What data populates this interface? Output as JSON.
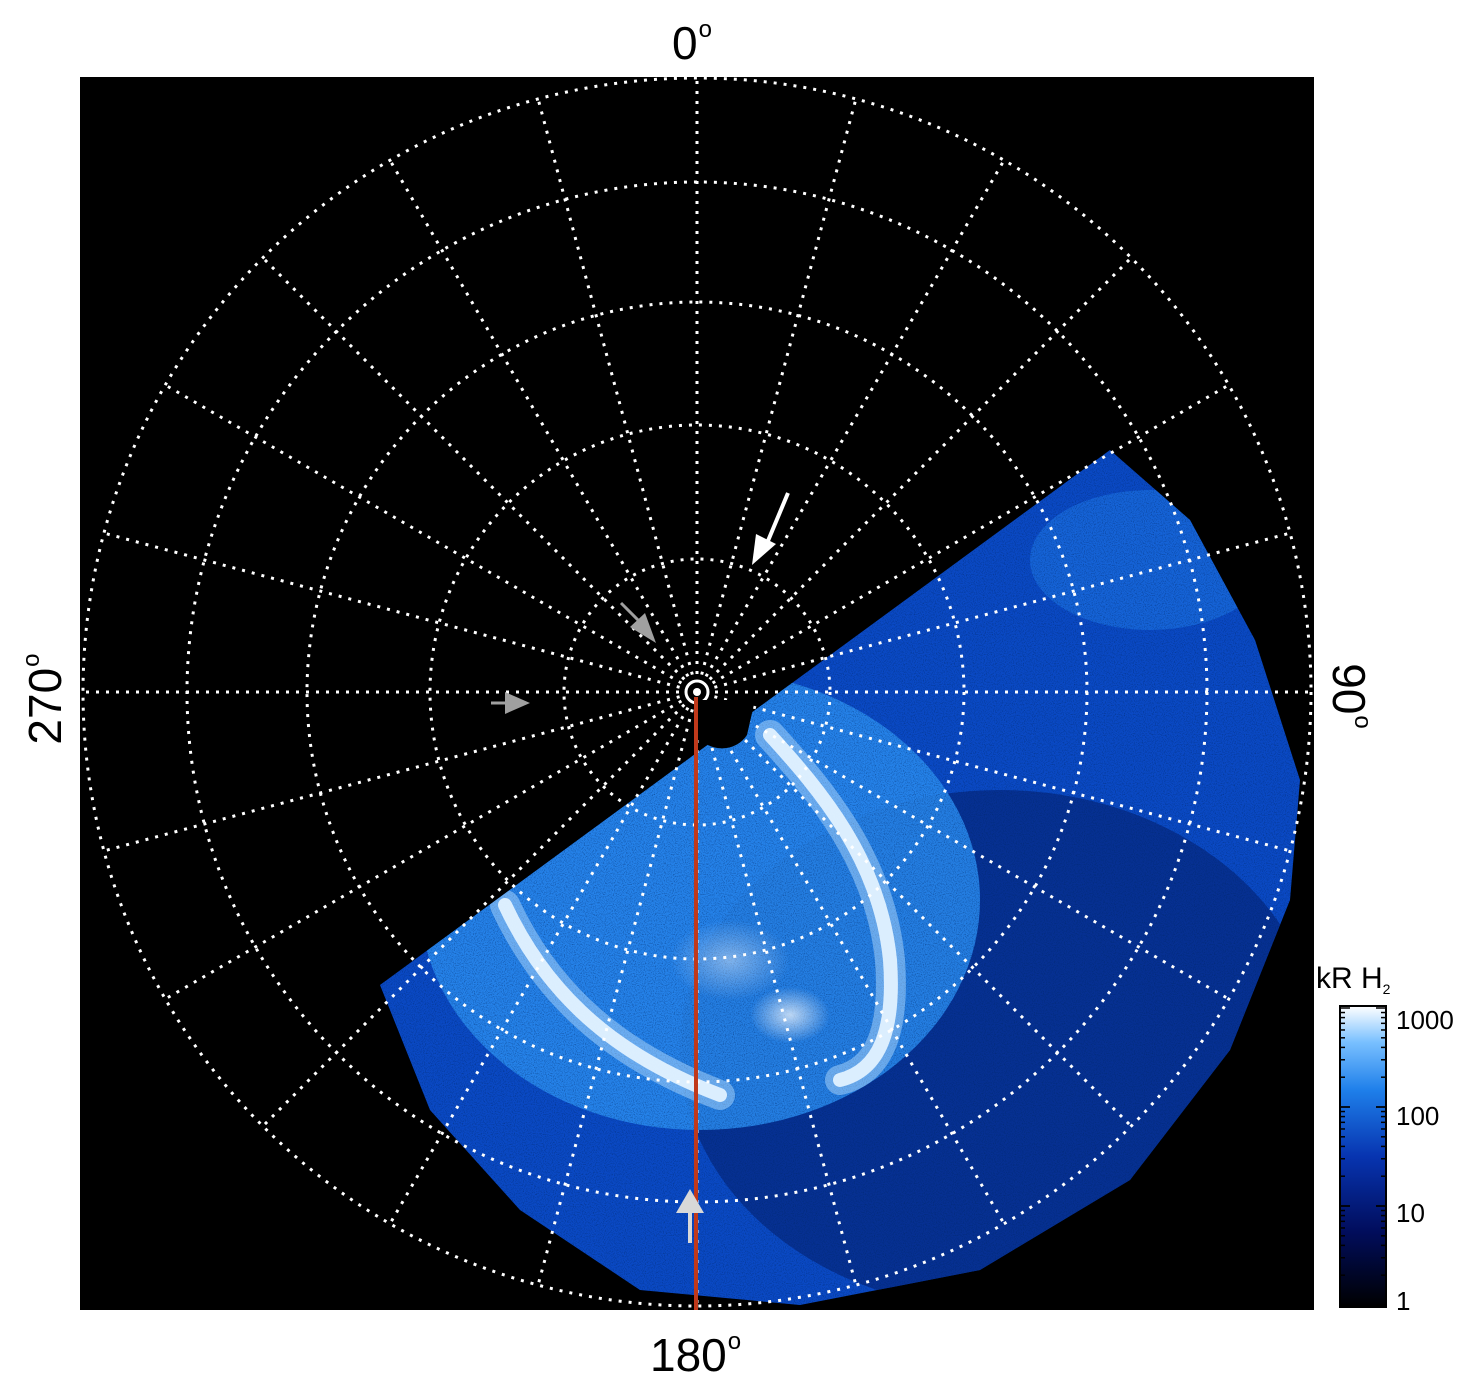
{
  "polar_plot": {
    "longitude_labels": {
      "top": "0",
      "right": "90",
      "bottom": "180",
      "left": "270",
      "degree_symbol": "o"
    },
    "background_color": "#000000",
    "grid_color": "#ffffff",
    "meridian_line_color": "#c0391b",
    "emission_colors": [
      "#020a3a",
      "#0b3fb5",
      "#1f7be8",
      "#7ec4ff",
      "#ffffff"
    ]
  },
  "colorbar": {
    "title_main": "kR H",
    "title_sub": "2",
    "ticks": [
      "1000",
      "100",
      "10",
      "1"
    ],
    "scale": "log",
    "range": [
      1,
      1000
    ]
  },
  "arrows": [
    {
      "color": "#ffffff",
      "name": "white-arrow"
    },
    {
      "color": "#aaaaaa",
      "name": "gray-arrow"
    }
  ]
}
